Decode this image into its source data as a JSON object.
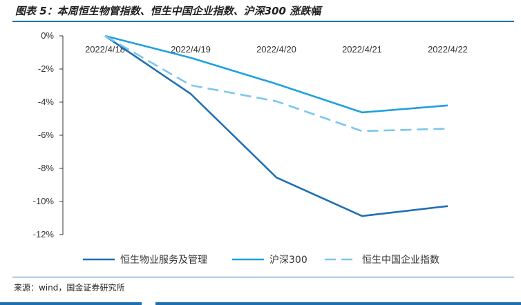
{
  "header": {
    "title": "图表 5：本周恒生物管指数、恒生中国企业指数、沪深300 涨跌幅"
  },
  "footer": {
    "source": "来源：wind，国金证券研究所"
  },
  "chart_data": {
    "type": "line",
    "x": [
      "2022/4/18",
      "2022/4/19",
      "2022/4/20",
      "2022/4/21",
      "2022/4/22"
    ],
    "ylim": [
      -12,
      0
    ],
    "yticks": [
      0,
      -2,
      -4,
      -6,
      -8,
      -10,
      -12
    ],
    "ytick_labels": [
      "0%",
      "-2%",
      "-4%",
      "-6%",
      "-8%",
      "-10%",
      "-12%"
    ],
    "series": [
      {
        "name": "恒生物业服务及管理",
        "values": [
          0,
          -3.5,
          -8.55,
          -10.88,
          -10.28
        ],
        "color": "#1f6fb3",
        "dash": "solid"
      },
      {
        "name": "沪深300",
        "values": [
          0,
          -1.32,
          -2.9,
          -4.62,
          -4.2
        ],
        "color": "#1ea0e0",
        "dash": "solid"
      },
      {
        "name": "恒生中国企业指数",
        "values": [
          0,
          -2.98,
          -3.95,
          -5.75,
          -5.6
        ],
        "color": "#7cc6ef",
        "dash": "dashed"
      }
    ],
    "grid": false,
    "legend_position": "bottom"
  }
}
